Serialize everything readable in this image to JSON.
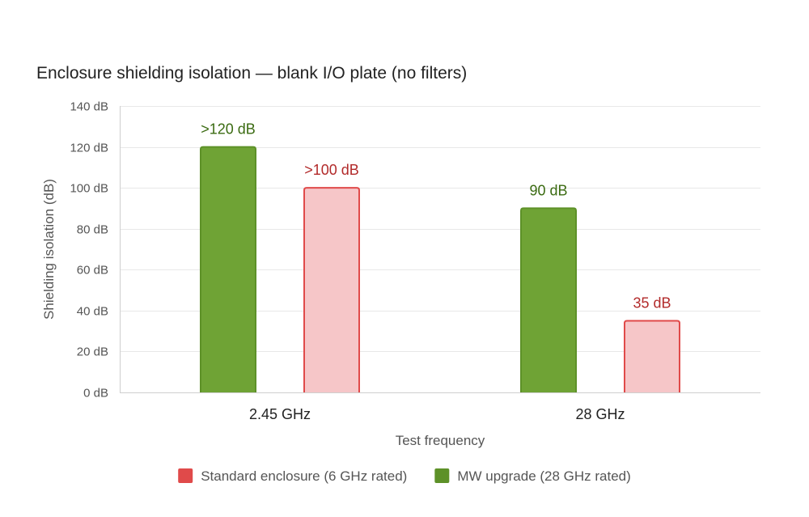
{
  "chart_data": {
    "type": "bar",
    "title": "Enclosure shielding isolation — blank I/O plate (no filters)",
    "xlabel": "Test frequency",
    "ylabel": "Shielding isolation (dB)",
    "ylim": [
      0,
      140
    ],
    "y_ticks": [
      0,
      20,
      40,
      60,
      80,
      100,
      120,
      140
    ],
    "y_tick_labels": [
      "0 dB",
      "20 dB",
      "40 dB",
      "60 dB",
      "80 dB",
      "100 dB",
      "120 dB",
      "140 dB"
    ],
    "categories": [
      "2.45 GHz",
      "28 GHz"
    ],
    "series": [
      {
        "name": "MW upgrade (28 GHz rated)",
        "values": [
          120,
          90
        ],
        "data_labels": [
          ">120 dB",
          "90 dB"
        ],
        "fill": "#6fa335",
        "stroke": "#5d9128",
        "label_color": "#3b6b12"
      },
      {
        "name": "Standard enclosure (6 GHz rated)",
        "values": [
          100,
          35
        ],
        "data_labels": [
          ">100 dB",
          "35 dB"
        ],
        "fill": "#f6c6c8",
        "stroke": "#e04a4a",
        "label_color": "#b22a2a"
      }
    ],
    "legend": {
      "position": "bottom",
      "items": [
        {
          "label": "Standard enclosure (6 GHz rated)",
          "color": "#e04a4a"
        },
        {
          "label": "MW upgrade (28 GHz rated)",
          "color": "#5d9128"
        }
      ]
    },
    "grid": true
  }
}
